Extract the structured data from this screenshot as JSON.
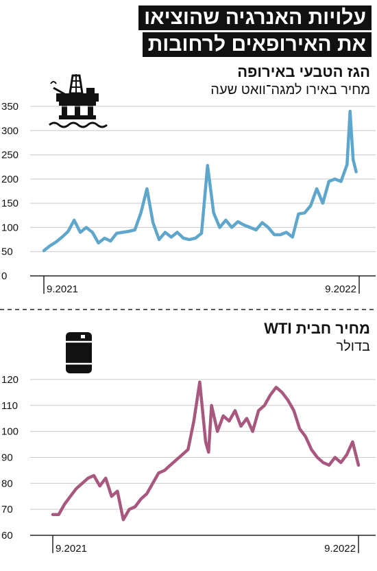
{
  "header": {
    "title_line1": "עלויות האנרגיה שהוציאו",
    "title_line2": "את האירופאים לרחובות"
  },
  "gas": {
    "title": "הגז הטבעי באירופה",
    "subtitle": "מחיר באירו למגה־וואט שעה"
  },
  "oil": {
    "title": "מחיר חבית WTI",
    "subtitle": "בדולר"
  },
  "icons": {
    "gas_icon": "oil-rig-icon",
    "oil_icon": "oil-barrel-icon"
  },
  "colors": {
    "gas_line": "#5ea6cc",
    "oil_line": "#a8577f",
    "title_bg": "#111111"
  },
  "chart_data": [
    {
      "type": "line",
      "title": "הגז הטבעי באירופה",
      "ylabel": "מחיר באירו למגה־וואט שעה",
      "ylim": [
        0,
        350
      ],
      "yticks": [
        0,
        50,
        100,
        150,
        200,
        250,
        300,
        350
      ],
      "xtick_labels": [
        "9.2021",
        "9.2022"
      ],
      "xlim": [
        0,
        52
      ],
      "x_ticks_at": [
        0,
        52
      ],
      "grid": "horizontal",
      "series": [
        {
          "x": [
            0,
            1,
            2,
            3,
            4,
            5,
            6,
            7,
            7.5,
            8,
            9,
            10,
            11,
            12,
            13,
            14,
            15,
            16,
            17,
            18,
            19,
            20,
            21,
            22,
            23,
            24,
            25,
            26,
            27,
            28,
            29,
            30,
            31,
            32,
            33,
            34,
            35,
            36,
            37,
            38,
            39,
            40,
            41,
            42,
            43,
            44,
            45,
            46,
            47,
            48,
            49,
            50,
            50.5,
            51,
            51.5
          ],
          "values": [
            52,
            62,
            70,
            80,
            92,
            115,
            90,
            100,
            95,
            90,
            68,
            78,
            72,
            88,
            90,
            92,
            95,
            130,
            180,
            110,
            75,
            90,
            80,
            90,
            78,
            75,
            78,
            88,
            228,
            130,
            100,
            115,
            100,
            112,
            105,
            100,
            95,
            110,
            100,
            85,
            85,
            90,
            80,
            128,
            130,
            145,
            180,
            150,
            195,
            200,
            195,
            230,
            340,
            240,
            215
          ]
        }
      ]
    },
    {
      "type": "line",
      "title": "מחיר חבית WTI",
      "ylabel": "בדולר",
      "ylim": [
        60,
        125
      ],
      "yticks": [
        60,
        70,
        80,
        90,
        100,
        110,
        120
      ],
      "xtick_labels": [
        "9.2021",
        "9.2022"
      ],
      "xlim": [
        0,
        52
      ],
      "x_ticks_at": [
        0,
        52
      ],
      "grid": "horizontal",
      "series": [
        {
          "x": [
            0,
            1,
            2,
            3,
            4,
            5,
            6,
            7,
            8,
            9,
            10,
            11,
            12,
            13,
            14,
            15,
            16,
            17,
            18,
            19,
            20,
            21,
            22,
            23,
            24,
            25,
            26,
            26.5,
            27,
            28,
            29,
            30,
            31,
            32,
            33,
            34,
            35,
            36,
            37,
            38,
            39,
            40,
            41,
            42,
            43,
            44,
            45,
            46,
            47,
            48,
            49,
            50,
            51,
            52
          ],
          "values": [
            68,
            68,
            72,
            75,
            78,
            80,
            82,
            83,
            79,
            82,
            75,
            77,
            66,
            70,
            71,
            74,
            76,
            80,
            84,
            85,
            87,
            89,
            91,
            93,
            104,
            119,
            96,
            92,
            110,
            100,
            106,
            104,
            108,
            102,
            105,
            100,
            108,
            110,
            114,
            117,
            115,
            112,
            108,
            101,
            98,
            93,
            90,
            88,
            87,
            90,
            88,
            91,
            96,
            87
          ]
        }
      ]
    }
  ]
}
